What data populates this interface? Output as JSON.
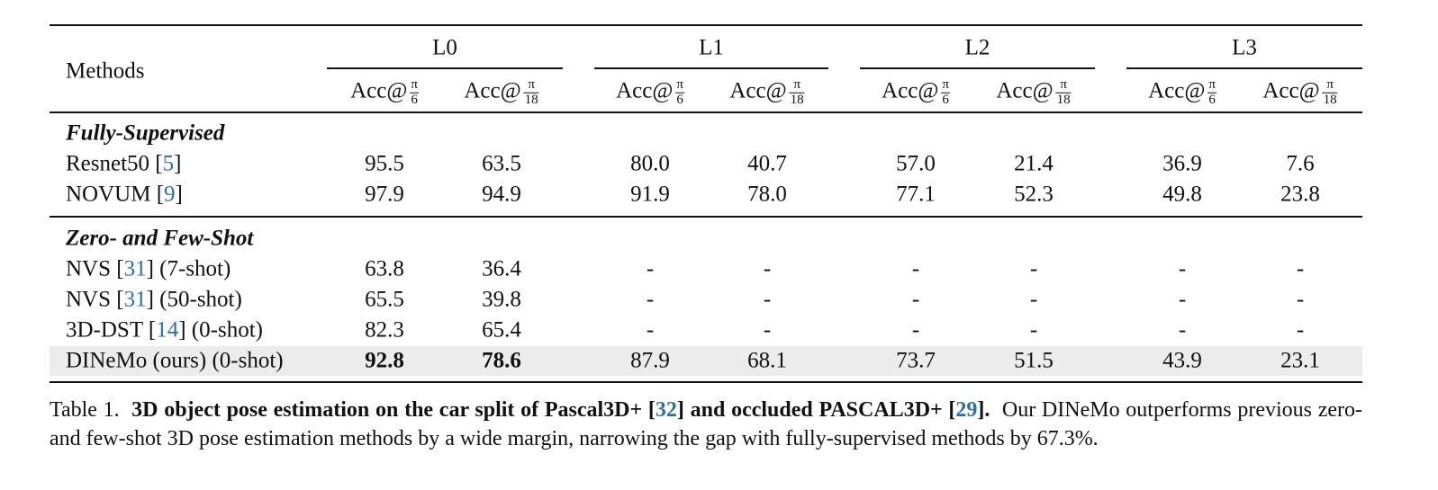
{
  "table": {
    "header": {
      "method": "Methods",
      "groups": [
        "L0",
        "L1",
        "L2",
        "L3"
      ],
      "subheaders": [
        {
          "prefix": "Acc@",
          "num": "π",
          "den": "6"
        },
        {
          "prefix": "Acc@",
          "num": "π",
          "den": "18"
        },
        {
          "prefix": "Acc@",
          "num": "π",
          "den": "6"
        },
        {
          "prefix": "Acc@",
          "num": "π",
          "den": "18"
        },
        {
          "prefix": "Acc@",
          "num": "π",
          "den": "6"
        },
        {
          "prefix": "Acc@",
          "num": "π",
          "den": "18"
        },
        {
          "prefix": "Acc@",
          "num": "π",
          "den": "6"
        },
        {
          "prefix": "Acc@",
          "num": "π",
          "den": "18"
        }
      ]
    },
    "sections": [
      {
        "title": "Fully-Supervised",
        "rows": [
          {
            "method": {
              "pre": "Resnet50 [",
              "cite": "5",
              "post": "]"
            },
            "values": [
              "95.5",
              "63.5",
              "80.0",
              "40.7",
              "57.0",
              "21.4",
              "36.9",
              "7.6"
            ]
          },
          {
            "method": {
              "pre": "NOVUM [",
              "cite": "9",
              "post": "]"
            },
            "values": [
              "97.9",
              "94.9",
              "91.9",
              "78.0",
              "77.1",
              "52.3",
              "49.8",
              "23.8"
            ]
          }
        ]
      },
      {
        "title": "Zero- and Few-Shot",
        "rows": [
          {
            "method": {
              "pre": "NVS [",
              "cite": "31",
              "post": "] (7-shot)"
            },
            "values": [
              "63.8",
              "36.4",
              "-",
              "-",
              "-",
              "-",
              "-",
              "-"
            ]
          },
          {
            "method": {
              "pre": "NVS [",
              "cite": "31",
              "post": "] (50-shot)"
            },
            "values": [
              "65.5",
              "39.8",
              "-",
              "-",
              "-",
              "-",
              "-",
              "-"
            ]
          },
          {
            "method": {
              "pre": "3D-DST [",
              "cite": "14",
              "post": "] (0-shot)"
            },
            "values": [
              "82.3",
              "65.4",
              "-",
              "-",
              "-",
              "-",
              "-",
              "-"
            ]
          },
          {
            "method": {
              "pre": "DINeMo (ours) (0-shot)"
            },
            "values": [
              "92.8",
              "78.6",
              "87.9",
              "68.1",
              "73.7",
              "51.5",
              "43.9",
              "23.1"
            ],
            "highlight": true,
            "bold": [
              true,
              true,
              false,
              false,
              false,
              false,
              false,
              false
            ]
          }
        ]
      }
    ]
  },
  "caption": [
    {
      "text": "Table 1.  "
    },
    {
      "text": "3D object pose estimation on the car split of Pascal3D+ [",
      "bold": true
    },
    {
      "text": "32",
      "bold": true,
      "cite": true
    },
    {
      "text": "] and occluded PASCAL3D+ [",
      "bold": true
    },
    {
      "text": "29",
      "bold": true,
      "cite": true
    },
    {
      "text": "].",
      "bold": true
    },
    {
      "text": "  Our DINeMo outperforms previous zero- and few-shot 3D pose estimation methods by a wide margin, narrowing the gap with fully-supervised methods by 67.3%."
    }
  ]
}
